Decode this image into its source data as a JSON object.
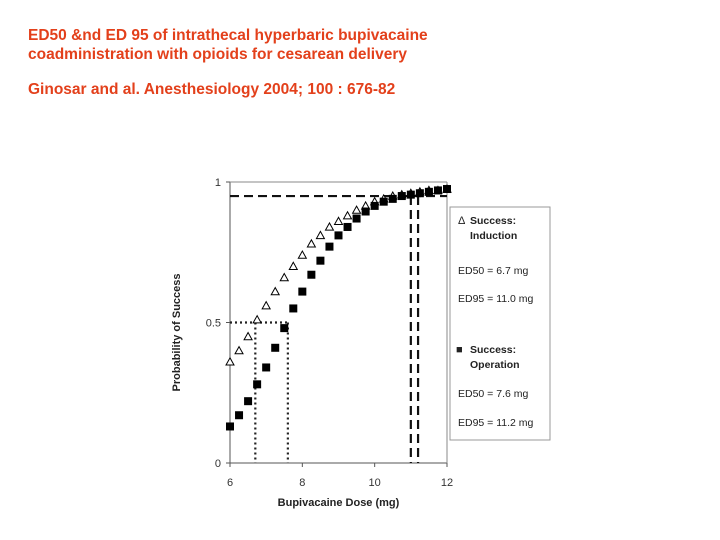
{
  "slide": {
    "title_line1": "ED50 &nd ED 95 of intrathecal hyperbaric bupivacaine",
    "title_line2": "coadministration with opioids for cesarean delivery",
    "citation": "Ginosar and al. Anesthesiology 2004; 100 : 676-82"
  },
  "chart_data": {
    "type": "scatter",
    "xlabel": "Bupivacaine Dose (mg)",
    "ylabel": "Probability of Success",
    "xlim": [
      6,
      12
    ],
    "ylim": [
      0,
      1
    ],
    "x_ticks": [
      {
        "value": 6,
        "label": "6"
      },
      {
        "value": 8,
        "label": "8"
      },
      {
        "value": 10,
        "label": "10"
      },
      {
        "value": 12,
        "label": "12"
      }
    ],
    "y_ticks": [
      {
        "value": 0,
        "label": "0"
      },
      {
        "value": 0.5,
        "label": "0.5"
      },
      {
        "value": 1,
        "label": "1"
      }
    ],
    "series": [
      {
        "name": "Success: Induction",
        "marker": "open-triangle",
        "color": "#000000",
        "x": [
          6.0,
          6.25,
          6.5,
          6.75,
          7.0,
          7.25,
          7.5,
          7.75,
          8.0,
          8.25,
          8.5,
          8.75,
          9.0,
          9.25,
          9.5,
          9.75,
          10.0,
          10.25,
          10.5,
          10.75,
          11.0,
          11.25,
          11.5,
          11.75,
          12.0
        ],
        "y": [
          0.36,
          0.4,
          0.45,
          0.51,
          0.56,
          0.61,
          0.66,
          0.7,
          0.74,
          0.78,
          0.81,
          0.84,
          0.86,
          0.88,
          0.9,
          0.915,
          0.93,
          0.94,
          0.95,
          0.955,
          0.96,
          0.965,
          0.97,
          0.97,
          0.975
        ]
      },
      {
        "name": "Success: Operation",
        "marker": "filled-square",
        "color": "#000000",
        "x": [
          6.0,
          6.25,
          6.5,
          6.75,
          7.0,
          7.25,
          7.5,
          7.75,
          8.0,
          8.25,
          8.5,
          8.75,
          9.0,
          9.25,
          9.5,
          9.75,
          10.0,
          10.25,
          10.5,
          10.75,
          11.0,
          11.25,
          11.5,
          11.75,
          12.0
        ],
        "y": [
          0.13,
          0.17,
          0.22,
          0.28,
          0.34,
          0.41,
          0.48,
          0.55,
          0.61,
          0.67,
          0.72,
          0.77,
          0.81,
          0.84,
          0.87,
          0.895,
          0.915,
          0.93,
          0.94,
          0.95,
          0.955,
          0.96,
          0.965,
          0.97,
          0.975
        ]
      }
    ],
    "reference_lines": {
      "horizontal": [
        0.5,
        0.95
      ],
      "vertical": [
        6.7,
        7.6,
        11.0,
        11.2
      ]
    },
    "legend": {
      "position": "right",
      "entries": [
        {
          "symbol": "Δ",
          "line1": "Success:",
          "line2": "Induction"
        },
        {
          "text": "ED50 = 6.7 mg"
        },
        {
          "text": "ED95 = 11.0 mg"
        },
        {
          "symbol": "■",
          "line1": "Success:",
          "line2": "Operation"
        },
        {
          "text": "ED50 = 7.6 mg"
        },
        {
          "text": "ED95 = 11.2 mg"
        }
      ]
    }
  }
}
